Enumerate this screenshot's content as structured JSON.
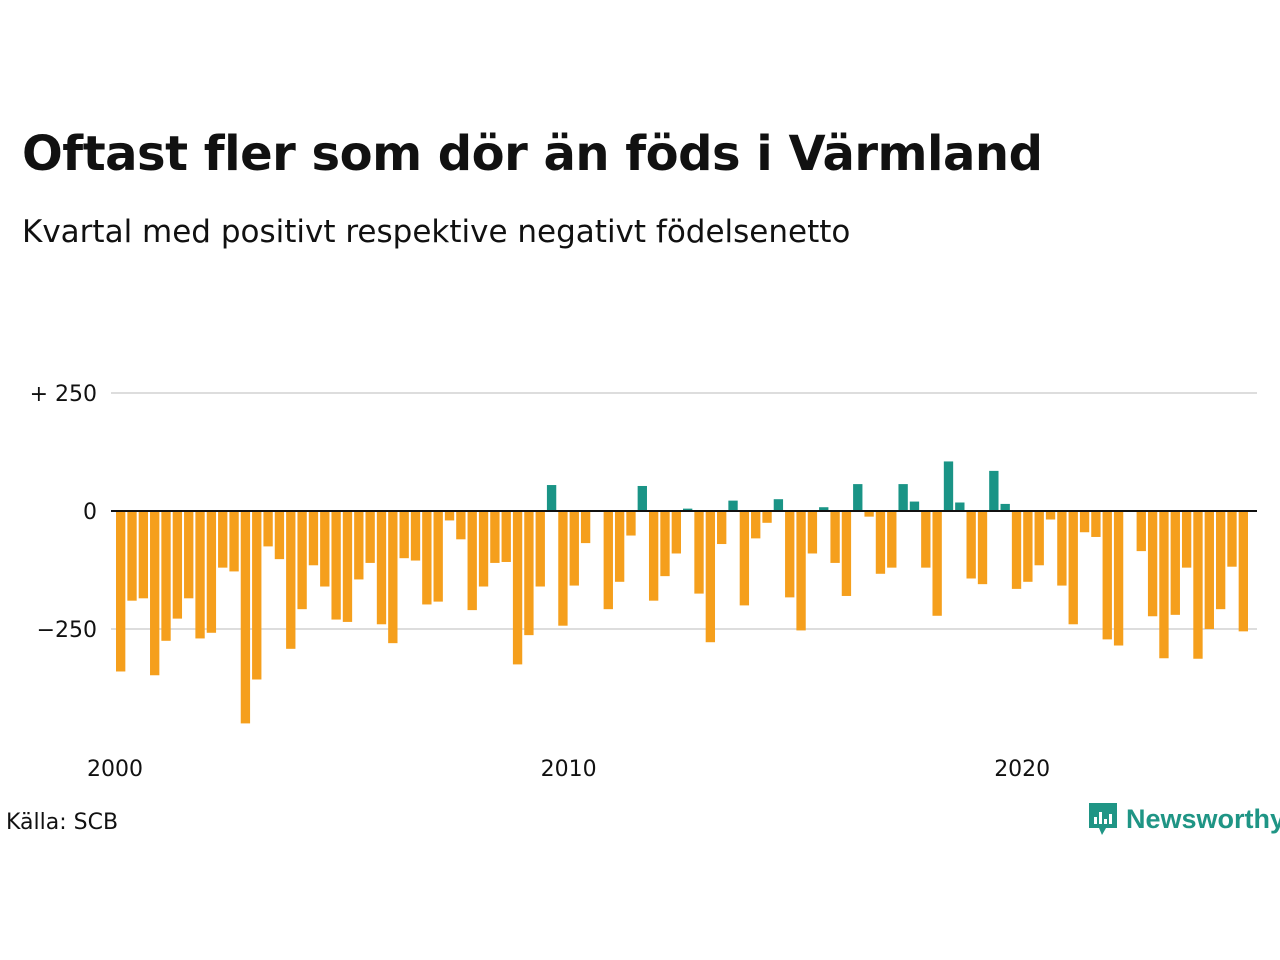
{
  "title": "Oftast fler som dör än föds i Värmland",
  "subtitle": "Kvartal med positivt respektive negativt födelsenetto",
  "source": "Källa: SCB",
  "brand": {
    "name": "Newsworthy",
    "icon": "newsworthy-logo-icon",
    "color": "#1f9585"
  },
  "colors": {
    "positive": "#1a9486",
    "negative": "#f59f1c",
    "grid": "#dddddd",
    "zero_line": "#111111"
  },
  "chart_data": {
    "type": "bar",
    "title": "Oftast fler som dör än föds i Värmland",
    "subtitle": "Kvartal med positivt respektive negativt födelsenetto",
    "xlabel": "",
    "ylabel": "",
    "ylim": [
      -460,
      250
    ],
    "xlim": [
      2000,
      2025
    ],
    "grid": true,
    "legend": "none",
    "y_ticks": [
      {
        "value": 250,
        "label": "+ 250"
      },
      {
        "value": 0,
        "label": "0"
      },
      {
        "value": -250,
        "label": "−250"
      }
    ],
    "x_ticks": [
      {
        "value": 2000,
        "label": "2000"
      },
      {
        "value": 2010,
        "label": "2010"
      },
      {
        "value": 2020,
        "label": "2020"
      }
    ],
    "series": [
      {
        "start": "2000 Q1",
        "frequency": "quarterly",
        "values": [
          -340,
          -190,
          -185,
          -348,
          -275,
          -228,
          -185,
          -270,
          -258,
          -120,
          -128,
          -450,
          -357,
          -75,
          -102,
          -292,
          -208,
          -115,
          -160,
          -230,
          -235,
          -145,
          -110,
          -240,
          -280,
          -100,
          -105,
          -198,
          -192,
          -20,
          -60,
          -210,
          -160,
          -110,
          -108,
          -325,
          -263,
          -160,
          55,
          -243,
          -158,
          -68,
          0,
          -208,
          -150,
          -52,
          53,
          -190,
          -138,
          -90,
          5,
          -175,
          -278,
          -70,
          22,
          -200,
          -58,
          -25,
          25,
          -183,
          -253,
          -90,
          8,
          -110,
          -180,
          57,
          -12,
          -133,
          -120,
          57,
          20,
          -120,
          -222,
          105,
          18,
          -143,
          -155,
          85,
          15,
          -165,
          -150,
          -115,
          -18,
          -158,
          -240,
          -45,
          -55,
          -272,
          -285,
          0,
          -85,
          -223,
          -312,
          -220,
          -120,
          -313,
          -250,
          -208,
          -118,
          -255
        ]
      }
    ]
  }
}
